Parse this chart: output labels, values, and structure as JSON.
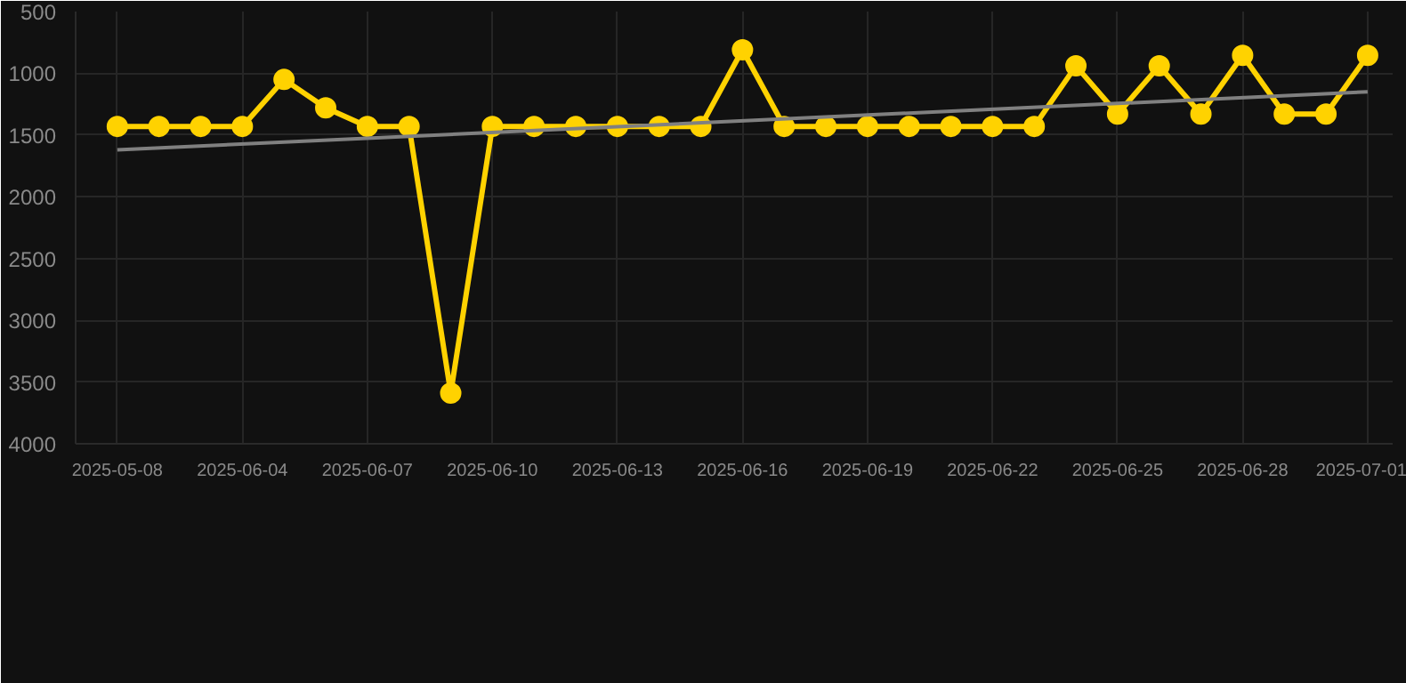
{
  "chart_data": {
    "type": "line",
    "categories": [
      "2025-05-08",
      null,
      null,
      "2025-06-04",
      null,
      null,
      "2025-06-07",
      null,
      null,
      "2025-06-10",
      null,
      null,
      "2025-06-13",
      null,
      null,
      "2025-06-16",
      null,
      null,
      "2025-06-19",
      null,
      null,
      "2025-06-22",
      null,
      null,
      "2025-06-25",
      null,
      null,
      "2025-06-28",
      null,
      null,
      "2025-07-01"
    ],
    "series": [
      {
        "color": "#ffd200",
        "marker": "circle",
        "values": [
          1430,
          1430,
          1430,
          1430,
          1050,
          1280,
          1430,
          1430,
          3590,
          1430,
          1430,
          1430,
          1430,
          1430,
          1430,
          810,
          1430,
          1430,
          1430,
          1430,
          1430,
          1430,
          1430,
          940,
          1330,
          940,
          1330,
          855,
          1330,
          1330,
          855
        ]
      },
      {
        "type": "line",
        "color": "#808080",
        "marker": "none",
        "values": [
          1620,
          null,
          null,
          null,
          null,
          null,
          null,
          null,
          null,
          null,
          null,
          null,
          null,
          null,
          null,
          null,
          null,
          null,
          null,
          null,
          null,
          null,
          null,
          null,
          null,
          null,
          null,
          null,
          null,
          null,
          1150
        ]
      }
    ],
    "ylim": [
      4000,
      500
    ],
    "yticks": [
      500,
      1000,
      1500,
      2000,
      2500,
      3000,
      3500,
      4000
    ],
    "grid": true
  }
}
